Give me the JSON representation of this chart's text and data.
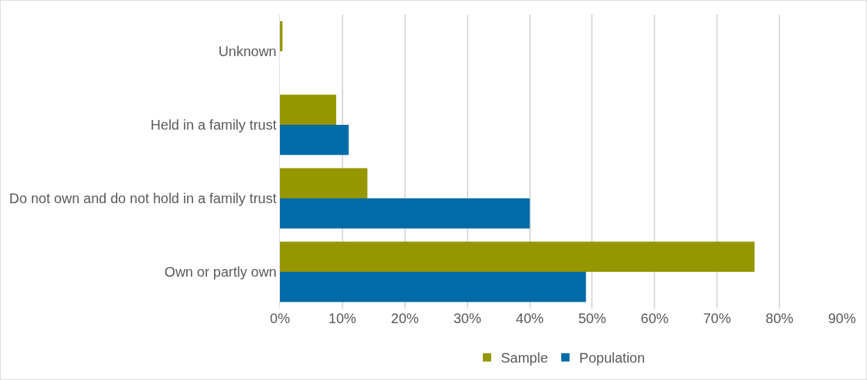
{
  "chart_data": {
    "type": "bar",
    "orientation": "horizontal",
    "categories": [
      "Unknown",
      "Held in a family trust",
      "Do not own and do not hold in a family trust",
      "Own or partly own"
    ],
    "series": [
      {
        "name": "Sample",
        "color": "#959600",
        "values": [
          0.4,
          9,
          14,
          76
        ]
      },
      {
        "name": "Population",
        "color": "#006ba6",
        "values": [
          null,
          11,
          40,
          49
        ]
      }
    ],
    "xlim": [
      0,
      90
    ],
    "xticks": [
      {
        "value": 0,
        "label": "0%"
      },
      {
        "value": 10,
        "label": "10%"
      },
      {
        "value": 20,
        "label": "20%"
      },
      {
        "value": 30,
        "label": "30%"
      },
      {
        "value": 40,
        "label": "40%"
      },
      {
        "value": 50,
        "label": "50%"
      },
      {
        "value": 60,
        "label": "60%"
      },
      {
        "value": 70,
        "label": "70%"
      },
      {
        "value": 80,
        "label": "80%"
      },
      {
        "value": 90,
        "label": "90%"
      }
    ],
    "grid": "x",
    "legend": "bottom"
  }
}
